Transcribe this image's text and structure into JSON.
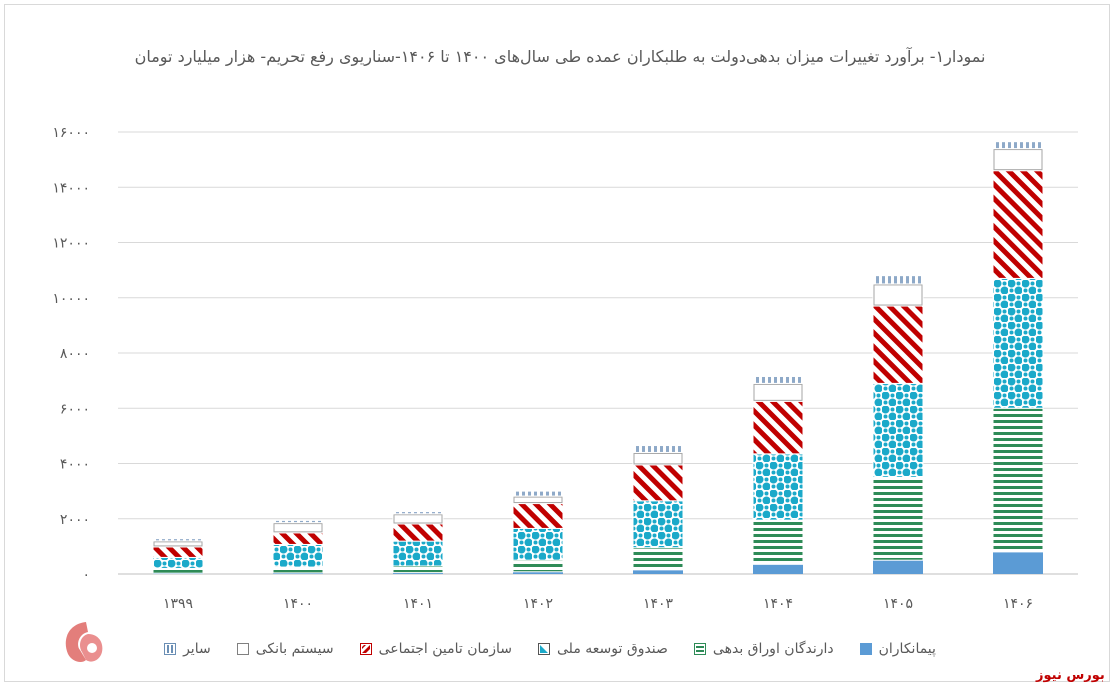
{
  "chart_data": {
    "type": "bar",
    "stacked": true,
    "title": "نمودار۱- برآورد تغییرات میزان بدهی‌دولت به طلبکاران عمده طی سال‌های ۱۴۰۰ تا ۱۴۰۶-سناریوی رفع تحریم- هزار میلیارد تومان",
    "categories": [
      "۱۳۹۹",
      "۱۴۰۰",
      "۱۴۰۱",
      "۱۴۰۲",
      "۱۴۰۳",
      "۱۴۰۴",
      "۱۴۰۵",
      "۱۴۰۶"
    ],
    "y_tick_values": [
      0,
      2000,
      4000,
      6000,
      8000,
      10000,
      12000,
      14000,
      16000
    ],
    "y_tick_labels": [
      "۰",
      "۲۰۰۰",
      "۴۰۰۰",
      "۶۰۰۰",
      "۸۰۰۰",
      "۱۰۰۰۰",
      "۱۲۰۰۰",
      "۱۴۰۰۰",
      "۱۶۰۰۰"
    ],
    "ylim": [
      0,
      16000
    ],
    "grid": true,
    "legend_position": "bottom",
    "series": [
      {
        "name": "پیمانکاران",
        "color": "#5b9bd5",
        "pattern": "solid",
        "values": [
          30,
          40,
          50,
          80,
          150,
          350,
          500,
          800
        ]
      },
      {
        "name": "دارندگان اوراق بدهی",
        "color": "#2e8b57",
        "pattern": "hstripe",
        "values": [
          170,
          210,
          240,
          420,
          800,
          1600,
          3000,
          5200
        ]
      },
      {
        "name": "صندوق توسعه ملی",
        "color": "#1ba9c9",
        "pattern": "dots",
        "values": [
          400,
          820,
          900,
          1150,
          1700,
          2400,
          3400,
          4700
        ]
      },
      {
        "name": "سازمان تامین اجتماعی",
        "color": "#c00000",
        "pattern": "diag",
        "values": [
          380,
          420,
          620,
          900,
          1300,
          1900,
          2800,
          3900
        ]
      },
      {
        "name": "سیستم بانکی",
        "color": "#a6a6a6",
        "pattern": "outline",
        "values": [
          220,
          370,
          370,
          270,
          450,
          650,
          800,
          800
        ]
      },
      {
        "name": "سایر",
        "color": "#a6a6a6",
        "pattern": "vstripe",
        "values": [
          80,
          80,
          80,
          180,
          250,
          250,
          300,
          250
        ]
      }
    ]
  },
  "logo": {
    "text": "بورس نیوز"
  }
}
